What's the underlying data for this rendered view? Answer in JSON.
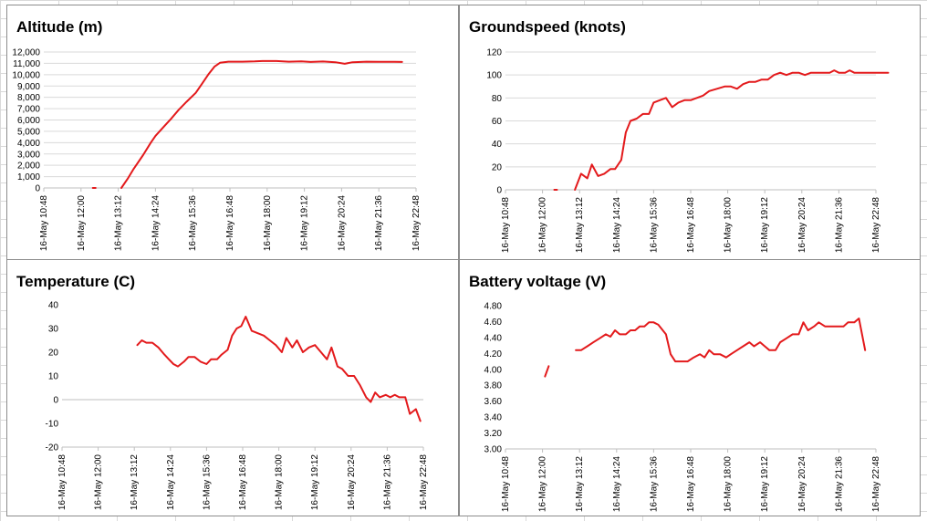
{
  "colors": {
    "series": "#e31a1c",
    "grid": "#d9d9d9",
    "panel_border": "#8c8c8c"
  },
  "chart_data": [
    {
      "id": "altitude",
      "type": "line",
      "title": "Altitude (m)",
      "xlabel": "",
      "ylabel": "",
      "x_tick_labels": [
        "16-May 10:48",
        "16-May 12:00",
        "16-May 13:12",
        "16-May 14:24",
        "16-May 15:36",
        "16-May 16:48",
        "16-May 18:00",
        "16-May 19:12",
        "16-May 20:24",
        "16-May 21:36",
        "16-May 22:48"
      ],
      "x_range_hours": [
        10.8,
        22.8
      ],
      "y_tick_labels": [
        "0",
        "1,000",
        "2,000",
        "3,000",
        "4,000",
        "5,000",
        "6,000",
        "7,000",
        "8,000",
        "9,000",
        "10,000",
        "11,000",
        "12,000"
      ],
      "ylim": [
        0,
        12000
      ],
      "grid": true,
      "series": [
        {
          "segments": [
            [
              [
                12.38,
                0
              ],
              [
                12.47,
                0
              ]
            ],
            [
              [
                13.3,
                0
              ],
              [
                13.5,
                800
              ],
              [
                13.7,
                1700
              ],
              [
                14.0,
                2900
              ],
              [
                14.25,
                4000
              ],
              [
                14.4,
                4600
              ],
              [
                14.7,
                5500
              ],
              [
                14.9,
                6100
              ],
              [
                15.15,
                6900
              ],
              [
                15.4,
                7600
              ],
              [
                15.7,
                8400
              ],
              [
                15.9,
                9200
              ],
              [
                16.1,
                10000
              ],
              [
                16.3,
                10700
              ],
              [
                16.48,
                11050
              ],
              [
                16.75,
                11150
              ],
              [
                17.2,
                11150
              ],
              [
                17.6,
                11170
              ],
              [
                17.85,
                11200
              ],
              [
                18.3,
                11200
              ],
              [
                18.7,
                11150
              ],
              [
                19.1,
                11180
              ],
              [
                19.4,
                11120
              ],
              [
                19.8,
                11160
              ],
              [
                20.2,
                11100
              ],
              [
                20.5,
                10960
              ],
              [
                20.75,
                11100
              ],
              [
                21.2,
                11150
              ],
              [
                21.6,
                11130
              ],
              [
                22.1,
                11130
              ],
              [
                22.35,
                11120
              ]
            ]
          ]
        }
      ]
    },
    {
      "id": "groundspeed",
      "type": "line",
      "title": "Groundspeed (knots)",
      "xlabel": "",
      "ylabel": "",
      "x_tick_labels": [
        "16-May 10:48",
        "16-May 12:00",
        "16-May 13:12",
        "16-May 14:24",
        "16-May 15:36",
        "16-May 16:48",
        "16-May 18:00",
        "16-May 19:12",
        "16-May 20:24",
        "16-May 21:36",
        "16-May 22:48"
      ],
      "x_range_hours": [
        10.8,
        22.8
      ],
      "y_tick_labels": [
        "0",
        "20",
        "40",
        "60",
        "80",
        "100",
        "120"
      ],
      "ylim": [
        0,
        120
      ],
      "grid": true,
      "series": [
        {
          "segments": [
            [
              [
                12.38,
                0
              ],
              [
                12.47,
                0
              ]
            ],
            [
              [
                13.05,
                0
              ],
              [
                13.25,
                14
              ],
              [
                13.45,
                10
              ],
              [
                13.6,
                22
              ],
              [
                13.8,
                12
              ],
              [
                14.0,
                14
              ],
              [
                14.2,
                18
              ],
              [
                14.35,
                18
              ],
              [
                14.55,
                26
              ],
              [
                14.7,
                50
              ],
              [
                14.85,
                60
              ],
              [
                15.05,
                62
              ],
              [
                15.25,
                66
              ],
              [
                15.45,
                66
              ],
              [
                15.6,
                76
              ],
              [
                15.8,
                78
              ],
              [
                16.0,
                80
              ],
              [
                16.2,
                72
              ],
              [
                16.4,
                76
              ],
              [
                16.6,
                78
              ],
              [
                16.8,
                78
              ],
              [
                17.0,
                80
              ],
              [
                17.2,
                82
              ],
              [
                17.4,
                86
              ],
              [
                17.65,
                88
              ],
              [
                17.9,
                90
              ],
              [
                18.1,
                90
              ],
              [
                18.3,
                88
              ],
              [
                18.5,
                92
              ],
              [
                18.7,
                94
              ],
              [
                18.9,
                94
              ],
              [
                19.1,
                96
              ],
              [
                19.3,
                96
              ],
              [
                19.5,
                100
              ],
              [
                19.7,
                102
              ],
              [
                19.9,
                100
              ],
              [
                20.1,
                102
              ],
              [
                20.3,
                102
              ],
              [
                20.5,
                100
              ],
              [
                20.7,
                102
              ],
              [
                20.9,
                102
              ],
              [
                21.1,
                102
              ],
              [
                21.3,
                102
              ],
              [
                21.45,
                104
              ],
              [
                21.6,
                102
              ],
              [
                21.8,
                102
              ],
              [
                21.95,
                104
              ],
              [
                22.1,
                102
              ],
              [
                22.3,
                102
              ],
              [
                22.6,
                102
              ],
              [
                22.9,
                102
              ],
              [
                23.2,
                102
              ]
            ]
          ]
        }
      ]
    },
    {
      "id": "temperature",
      "type": "line",
      "title": "Temperature (C)",
      "xlabel": "",
      "ylabel": "",
      "x_tick_labels": [
        "16-May 10:48",
        "16-May 12:00",
        "16-May 13:12",
        "16-May 14:24",
        "16-May 15:36",
        "16-May 16:48",
        "16-May 18:00",
        "16-May 19:12",
        "16-May 20:24",
        "16-May 21:36",
        "16-May 22:48"
      ],
      "x_range_hours": [
        10.8,
        22.8
      ],
      "y_tick_labels": [
        "-20",
        "-10",
        "0",
        "10",
        "20",
        "30",
        "40"
      ],
      "ylim": [
        -20,
        40
      ],
      "grid": false,
      "series": [
        {
          "segments": [
            [
              [
                13.3,
                23
              ],
              [
                13.45,
                25
              ],
              [
                13.6,
                24
              ],
              [
                13.8,
                24
              ],
              [
                14.0,
                22
              ],
              [
                14.2,
                19
              ],
              [
                14.35,
                17
              ],
              [
                14.5,
                15
              ],
              [
                14.65,
                14
              ],
              [
                14.85,
                16
              ],
              [
                15.0,
                18
              ],
              [
                15.2,
                18
              ],
              [
                15.4,
                16
              ],
              [
                15.6,
                15
              ],
              [
                15.75,
                17
              ],
              [
                15.95,
                17
              ],
              [
                16.1,
                19
              ],
              [
                16.3,
                21
              ],
              [
                16.45,
                27
              ],
              [
                16.6,
                30
              ],
              [
                16.75,
                31
              ],
              [
                16.9,
                35
              ],
              [
                17.1,
                29
              ],
              [
                17.3,
                28
              ],
              [
                17.5,
                27
              ],
              [
                17.7,
                25
              ],
              [
                17.9,
                23
              ],
              [
                18.1,
                20
              ],
              [
                18.25,
                26
              ],
              [
                18.45,
                22
              ],
              [
                18.6,
                25
              ],
              [
                18.8,
                20
              ],
              [
                19.0,
                22
              ],
              [
                19.2,
                23
              ],
              [
                19.4,
                20
              ],
              [
                19.6,
                17
              ],
              [
                19.75,
                22
              ],
              [
                19.95,
                14
              ],
              [
                20.1,
                13
              ],
              [
                20.3,
                10
              ],
              [
                20.5,
                10
              ],
              [
                20.7,
                6
              ],
              [
                20.9,
                1
              ],
              [
                21.05,
                -1
              ],
              [
                21.2,
                3
              ],
              [
                21.35,
                1
              ],
              [
                21.55,
                2
              ],
              [
                21.7,
                1
              ],
              [
                21.85,
                2
              ],
              [
                22.0,
                1
              ],
              [
                22.2,
                1
              ],
              [
                22.35,
                -6
              ],
              [
                22.55,
                -4
              ],
              [
                22.7,
                -9
              ]
            ]
          ]
        }
      ]
    },
    {
      "id": "battery",
      "type": "line",
      "title": "Battery voltage (V)",
      "xlabel": "",
      "ylabel": "",
      "x_tick_labels": [
        "16-May 10:48",
        "16-May 12:00",
        "16-May 13:12",
        "16-May 14:24",
        "16-May 15:36",
        "16-May 16:48",
        "16-May 18:00",
        "16-May 19:12",
        "16-May 20:24",
        "16-May 21:36",
        "16-May 22:48"
      ],
      "x_range_hours": [
        10.8,
        22.8
      ],
      "y_tick_labels": [
        "3.00",
        "3.20",
        "3.40",
        "3.60",
        "3.80",
        "4.00",
        "4.20",
        "4.40",
        "4.60",
        "4.80"
      ],
      "ylim": [
        3.0,
        4.8
      ],
      "grid": false,
      "series": [
        {
          "segments": [
            [
              [
                12.08,
                3.91
              ],
              [
                12.2,
                4.04
              ]
            ],
            [
              [
                13.08,
                4.24
              ],
              [
                13.25,
                4.24
              ],
              [
                13.45,
                4.29
              ],
              [
                13.65,
                4.34
              ],
              [
                13.85,
                4.39
              ],
              [
                14.05,
                4.44
              ],
              [
                14.2,
                4.41
              ],
              [
                14.35,
                4.49
              ],
              [
                14.5,
                4.44
              ],
              [
                14.7,
                4.44
              ],
              [
                14.85,
                4.49
              ],
              [
                15.0,
                4.49
              ],
              [
                15.15,
                4.54
              ],
              [
                15.3,
                4.54
              ],
              [
                15.45,
                4.59
              ],
              [
                15.6,
                4.59
              ],
              [
                15.75,
                4.56
              ],
              [
                16.0,
                4.44
              ],
              [
                16.15,
                4.19
              ],
              [
                16.3,
                4.1
              ],
              [
                16.5,
                4.1
              ],
              [
                16.7,
                4.1
              ],
              [
                16.9,
                4.15
              ],
              [
                17.1,
                4.19
              ],
              [
                17.25,
                4.15
              ],
              [
                17.4,
                4.24
              ],
              [
                17.55,
                4.19
              ],
              [
                17.75,
                4.19
              ],
              [
                17.95,
                4.15
              ],
              [
                18.1,
                4.19
              ],
              [
                18.3,
                4.24
              ],
              [
                18.5,
                4.29
              ],
              [
                18.7,
                4.34
              ],
              [
                18.85,
                4.29
              ],
              [
                19.05,
                4.34
              ],
              [
                19.2,
                4.29
              ],
              [
                19.35,
                4.24
              ],
              [
                19.55,
                4.24
              ],
              [
                19.7,
                4.34
              ],
              [
                19.9,
                4.39
              ],
              [
                20.1,
                4.44
              ],
              [
                20.3,
                4.44
              ],
              [
                20.45,
                4.59
              ],
              [
                20.6,
                4.49
              ],
              [
                20.8,
                4.54
              ],
              [
                20.95,
                4.59
              ],
              [
                21.15,
                4.54
              ],
              [
                21.35,
                4.54
              ],
              [
                21.6,
                4.54
              ],
              [
                21.75,
                4.54
              ],
              [
                21.9,
                4.59
              ],
              [
                22.1,
                4.59
              ],
              [
                22.25,
                4.64
              ],
              [
                22.45,
                4.24
              ]
            ]
          ]
        }
      ]
    }
  ]
}
